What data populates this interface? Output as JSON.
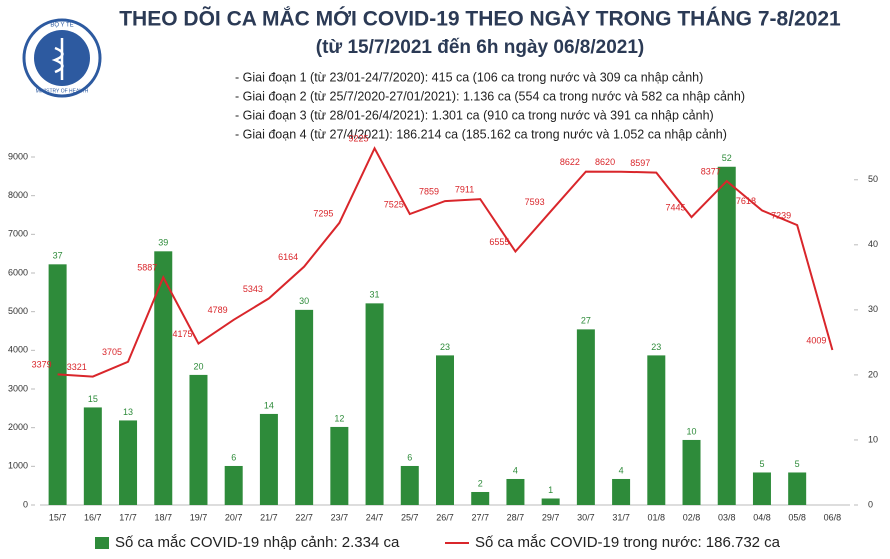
{
  "logo": {
    "text": "BỘ Y TẾ",
    "subtext": "MINISTRY OF HEALTH"
  },
  "chart_data": {
    "type": "combo",
    "title": "THEO DÕI CA MẮC MỚI COVID-19 THEO NGÀY TRONG THÁNG 7-8/2021",
    "subtitle": "(từ 15/7/2021 đến 6h ngày 06/8/2021)",
    "notes": [
      "- Giai đoạn 1 (từ 23/01-24/7/2020): 415 ca (106 ca trong nước và 309 ca nhập cảnh)",
      "- Giai đoạn 2 (từ 25/7/2020-27/01/2021): 1.136 ca (554 ca trong nước và 582 ca nhập cảnh)",
      "- Giai đoạn 3 (từ 28/01-26/4/2021): 1.301 ca (910 ca trong nước và 391 ca nhập cảnh)",
      "- Giai đoạn 4 (từ 27/4/2021): 186.214 ca (185.162 ca trong nước và 1.052 ca nhập cảnh)"
    ],
    "categories": [
      "15/7",
      "16/7",
      "17/7",
      "18/7",
      "19/7",
      "20/7",
      "21/7",
      "22/7",
      "23/7",
      "24/7",
      "25/7",
      "26/7",
      "27/7",
      "28/7",
      "29/7",
      "30/7",
      "31/7",
      "01/8",
      "02/8",
      "03/8",
      "04/8",
      "05/8",
      "06/8"
    ],
    "series": [
      {
        "name": "Số ca mắc COVID-19 nhập cảnh: 2.334 ca",
        "type": "bar",
        "axis": "y2",
        "color": "#2e8b3a",
        "values": [
          37,
          15,
          13,
          39,
          20,
          6,
          14,
          30,
          12,
          31,
          6,
          23,
          2,
          4,
          1,
          27,
          4,
          23,
          10,
          52,
          5,
          5,
          null
        ]
      },
      {
        "name": "Số ca mắc COVID-19 trong nước: 186.732 ca",
        "type": "line",
        "axis": "y",
        "color": "#d9262b",
        "values": [
          3379,
          3321,
          3705,
          5887,
          4175,
          4789,
          5343,
          6164,
          7295,
          9225,
          7525,
          7859,
          7911,
          6555,
          7593,
          8622,
          8620,
          8597,
          7445,
          8377,
          7618,
          7239,
          4009
        ]
      }
    ],
    "ylim": [
      0,
      9000
    ],
    "yticks": [
      0,
      1000,
      2000,
      3000,
      4000,
      5000,
      6000,
      7000,
      8000,
      9000
    ],
    "y2lim": [
      0,
      53.5
    ],
    "y2ticks": [
      0,
      10,
      20,
      30,
      40,
      50
    ]
  }
}
